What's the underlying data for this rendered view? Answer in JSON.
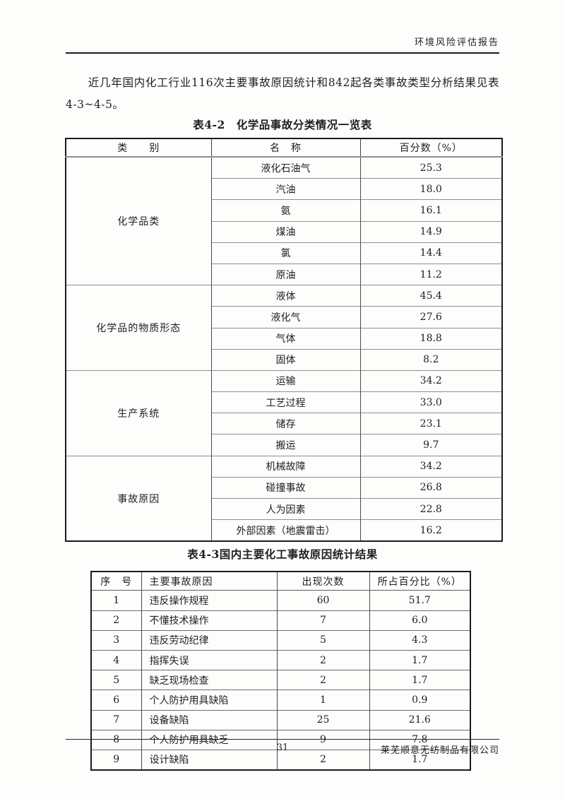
{
  "page": {
    "running_head": "环境风险评估报告",
    "intro_paragraph": "近几年国内化工行业116次主要事故原因统计和842起各类事故类型分析结果见表4-3~4-5。",
    "footer": {
      "page_number": "31",
      "company": "莱芜顺意无纺制品有限公司"
    }
  },
  "table1": {
    "title": "表4-2　化学品事故分类情况一览表",
    "headers": [
      "类　　别",
      "名　称",
      "百分数（%）"
    ],
    "groups": [
      {
        "category": "化学品类",
        "rows": [
          [
            "液化石油气",
            "25.3"
          ],
          [
            "汽油",
            "18.0"
          ],
          [
            "氨",
            "16.1"
          ],
          [
            "煤油",
            "14.9"
          ],
          [
            "氯",
            "14.4"
          ],
          [
            "原油",
            "11.2"
          ]
        ]
      },
      {
        "category": "化学品的物质形态",
        "rows": [
          [
            "液体",
            "45.4"
          ],
          [
            "液化气",
            "27.6"
          ],
          [
            "气体",
            "18.8"
          ],
          [
            "固体",
            "8.2"
          ]
        ]
      },
      {
        "category": "生产系统",
        "rows": [
          [
            "运输",
            "34.2"
          ],
          [
            "工艺过程",
            "33.0"
          ],
          [
            "储存",
            "23.1"
          ],
          [
            "搬运",
            "9.7"
          ]
        ]
      },
      {
        "category": "事故原因",
        "rows": [
          [
            "机械故障",
            "34.2"
          ],
          [
            "碰撞事故",
            "26.8"
          ],
          [
            "人为因素",
            "22.8"
          ],
          [
            "外部因素（地震雷击）",
            "16.2"
          ]
        ]
      }
    ]
  },
  "table2": {
    "title": "表4-3国内主要化工事故原因统计结果",
    "headers": [
      "序　号",
      "主要事故原因",
      "出现次数",
      "所占百分比（%）"
    ],
    "rows": [
      [
        "1",
        "违反操作规程",
        "60",
        "51.7"
      ],
      [
        "2",
        "不懂技术操作",
        "7",
        "6.0"
      ],
      [
        "3",
        "违反劳动纪律",
        "5",
        "4.3"
      ],
      [
        "4",
        "指挥失误",
        "2",
        "1.7"
      ],
      [
        "5",
        "缺乏现场检查",
        "2",
        "1.7"
      ],
      [
        "6",
        "个人防护用具缺陷",
        "1",
        "0.9"
      ],
      [
        "7",
        "设备缺陷",
        "25",
        "21.6"
      ],
      [
        "8",
        "个人防护用具缺乏",
        "9",
        "7.8"
      ],
      [
        "9",
        "设计缺陷",
        "2",
        "1.7"
      ]
    ]
  }
}
